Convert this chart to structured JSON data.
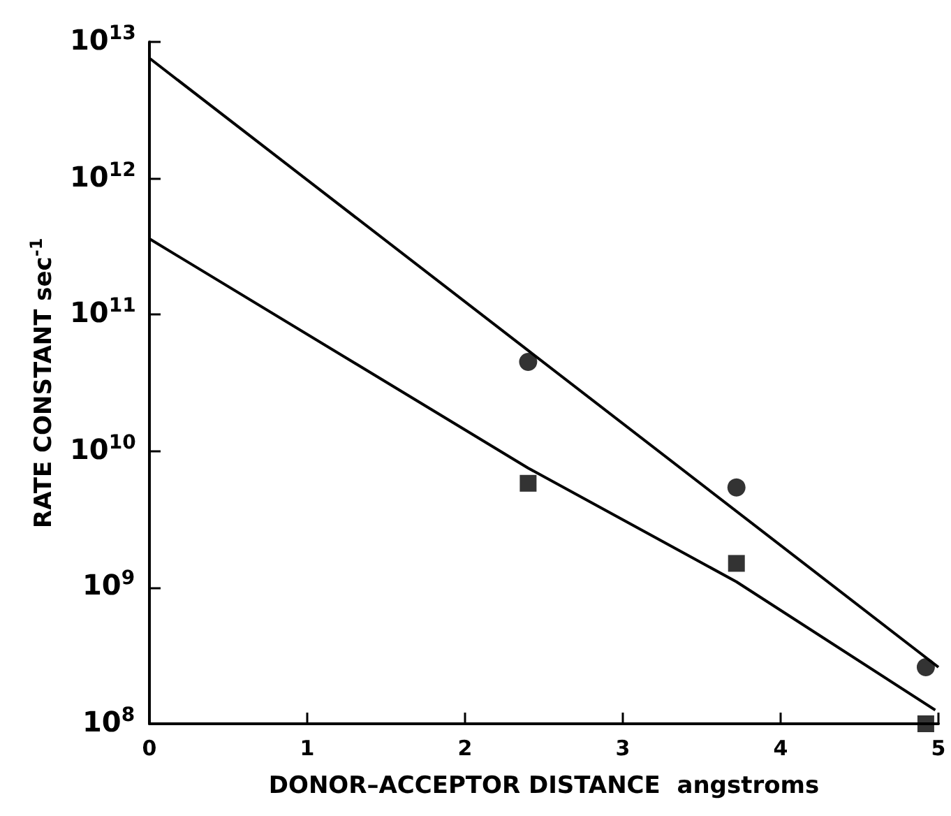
{
  "chart_data": {
    "type": "scatter",
    "xlabel": "DONOR–ACCEPTOR DISTANCE  angstroms",
    "ylabel": "RATE CONSTANT  sec$^{-1}$",
    "log": "y",
    "grid": false,
    "legend": false,
    "xlim": [
      0,
      5
    ],
    "xticks": [
      0,
      1,
      2,
      3,
      4,
      5
    ],
    "ylim": [
      100000000,
      10000000000000
    ],
    "yticks": [
      {
        "value": 100000000,
        "label": "10$^{8}$"
      },
      {
        "value": 1000000000,
        "label": "10$^{9}$"
      },
      {
        "value": 10000000000,
        "label": "10$^{10}$"
      },
      {
        "value": 100000000000,
        "label": "10$^{11}$"
      },
      {
        "value": 1000000000000,
        "label": "10$^{12}$"
      },
      {
        "value": 10000000000000,
        "label": "10$^{13}$"
      }
    ],
    "series": [
      {
        "marker": "circle",
        "color": "#000000",
        "x": [
          2.4,
          3.72,
          4.92
        ],
        "values": [
          45000000000,
          5400000000,
          260000000
        ]
      },
      {
        "marker": "square",
        "color": "#000000",
        "x": [
          2.4,
          3.72,
          4.92
        ],
        "values": [
          5800000000,
          1500000000,
          100000000
        ]
      },
      {
        "type": "line",
        "marker": "none",
        "line_style": "solid",
        "color": "#000000",
        "x": [
          0,
          5
        ],
        "values": [
          7600000000000,
          260000000
        ]
      },
      {
        "type": "line",
        "marker": "none",
        "line_style": "solid",
        "color": "#000000",
        "x": [
          0,
          2.4,
          3.72,
          4.98
        ],
        "values": [
          360000000000,
          7500000000,
          1100000000,
          126000000
        ]
      }
    ]
  }
}
